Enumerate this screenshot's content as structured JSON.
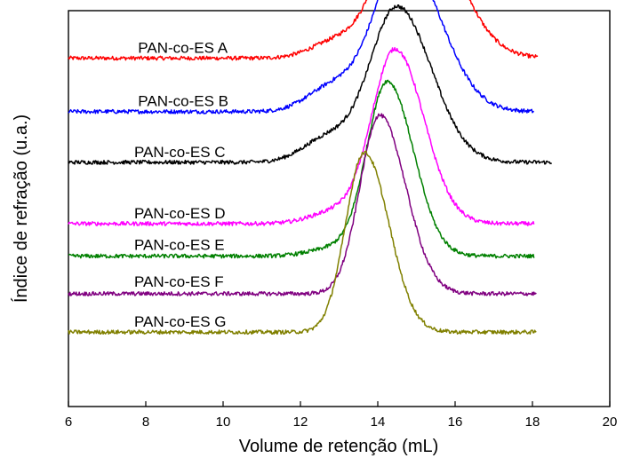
{
  "chart_data": {
    "type": "line",
    "title": "",
    "xlabel": "Volume de retenção (mL)",
    "ylabel": "Índice de refração (u.a.)",
    "xlim": [
      6,
      20
    ],
    "x_ticks": [
      6,
      8,
      10,
      12,
      14,
      16,
      18,
      20
    ],
    "y_ticks_shown": false,
    "grid": false,
    "legend": "inline labels next to each curve",
    "series": [
      {
        "name": "PAN-co-ES A",
        "color": "#ff0000",
        "x_range": [
          6,
          18.15
        ],
        "baseline": 0.88,
        "peak_x": 14.9,
        "peak_height": 0.765,
        "shoulder_x": 12.9,
        "shoulder_height": 0.04,
        "width_left": 1.1,
        "width_right": 1.45
      },
      {
        "name": "PAN-co-ES B",
        "color": "#0000ff",
        "x_range": [
          6,
          18.05
        ],
        "baseline": 0.745,
        "peak_x": 14.65,
        "peak_height": 0.72,
        "shoulder_x": 12.8,
        "shoulder_height": 0.06,
        "width_left": 1.05,
        "width_right": 1.35
      },
      {
        "name": "PAN-co-ES C",
        "color": "#000000",
        "x_range": [
          6,
          18.5
        ],
        "baseline": 0.617,
        "peak_x": 14.5,
        "peak_height": 0.715,
        "shoulder_x": 12.7,
        "shoulder_height": 0.06,
        "width_left": 1.0,
        "width_right": 1.25
      },
      {
        "name": "PAN-co-ES D",
        "color": "#ff00ff",
        "x_range": [
          6,
          18.05
        ],
        "baseline": 0.462,
        "peak_x": 14.45,
        "peak_height": 0.8,
        "shoulder_x": 12.9,
        "shoulder_height": 0.03,
        "width_left": 0.85,
        "width_right": 1.05
      },
      {
        "name": "PAN-co-ES E",
        "color": "#008000",
        "x_range": [
          6,
          18.05
        ],
        "baseline": 0.38,
        "peak_x": 14.25,
        "peak_height": 0.8,
        "shoulder_x": 12.9,
        "shoulder_height": 0.02,
        "width_left": 0.75,
        "width_right": 0.95
      },
      {
        "name": "PAN-co-ES F",
        "color": "#800080",
        "x_range": [
          6,
          18.1
        ],
        "baseline": 0.285,
        "peak_x": 14.05,
        "peak_height": 0.82,
        "shoulder_x": 12.9,
        "shoulder_height": 0.0,
        "width_left": 0.72,
        "width_right": 0.95
      },
      {
        "name": "PAN-co-ES G",
        "color": "#808000",
        "x_range": [
          6,
          18.1
        ],
        "baseline": 0.188,
        "peak_x": 13.65,
        "peak_height": 0.825,
        "shoulder_x": 12.0,
        "shoulder_height": 0.0,
        "width_left": 0.68,
        "width_right": 0.9
      }
    ]
  }
}
